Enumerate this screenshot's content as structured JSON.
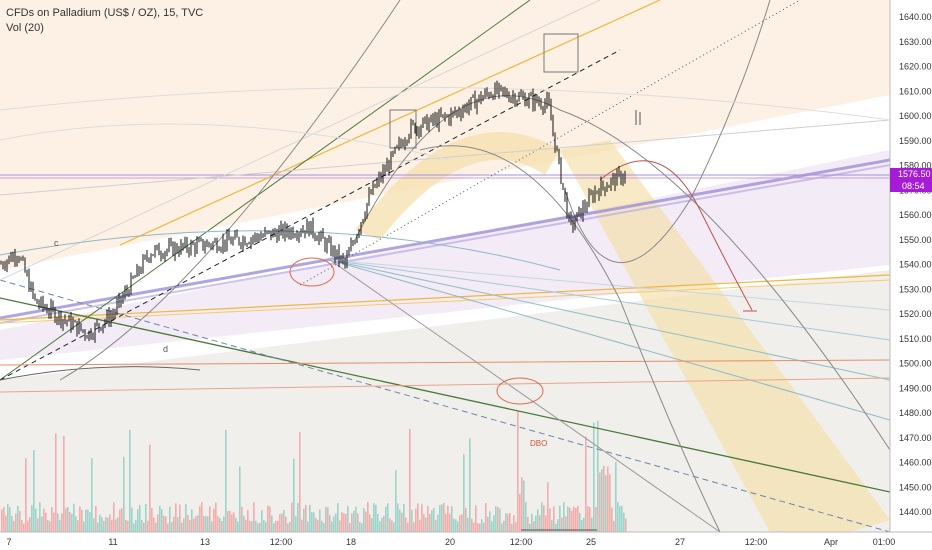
{
  "header": {
    "symbol_line": "CFDs on Palladium (US$ / OZ), 15, TVC",
    "indicator_line": "Vol (20)"
  },
  "price_axis": {
    "tick_labels": [
      "1640.00",
      "1630.00",
      "1620.00",
      "1610.00",
      "1600.00",
      "1590.00",
      "1580.00",
      "1570.00",
      "1560.00",
      "1550.00",
      "1540.00",
      "1530.00",
      "1520.00",
      "1510.00",
      "1500.00",
      "1490.00",
      "1480.00",
      "1470.00",
      "1460.00",
      "1450.00",
      "1440.00"
    ],
    "last_price_label": "1576.50",
    "countdown_label": "08:54",
    "last_price_color": "#a61cd6"
  },
  "time_axis": {
    "tick_labels": [
      "7",
      "11",
      "13",
      "12:00",
      "18",
      "20",
      "12:00",
      "25",
      "27",
      "12:00",
      "Apr",
      "01:00"
    ]
  },
  "annotations": {
    "wave_labels": [
      "c",
      "d"
    ],
    "dbo_label": "DBO"
  },
  "colors": {
    "candle": "#111111",
    "vol_up": "#8ccfc3",
    "vol_down": "#f2a1a1",
    "purple_line": "#9c8fd8",
    "orange_line": "#f3b53a",
    "green_line": "#4a7a3a",
    "red_ellipse": "#e06a4a"
  },
  "chart_data": {
    "type": "candlestick",
    "title": "CFDs on Palladium (US$ / OZ), 15, TVC",
    "interval": "15",
    "ylim": [
      1436,
      1648
    ],
    "yticks": [
      1640,
      1630,
      1620,
      1610,
      1600,
      1590,
      1580,
      1570,
      1560,
      1550,
      1540,
      1530,
      1520,
      1510,
      1500,
      1490,
      1480,
      1470,
      1460,
      1450,
      1440
    ],
    "last_price": 1576.5,
    "x_categories": [
      "7",
      "11",
      "13",
      "12:00",
      "18",
      "20",
      "12:00",
      "25",
      "27",
      "12:00",
      "Apr",
      "01:00"
    ],
    "price_path": [
      {
        "x": "7",
        "y": 1540
      },
      {
        "x": "7",
        "y": 1545
      },
      {
        "x": "7",
        "y": 1525
      },
      {
        "x": "11",
        "y": 1512
      },
      {
        "x": "11",
        "y": 1520
      },
      {
        "x": "13",
        "y": 1545
      },
      {
        "x": "13",
        "y": 1550
      },
      {
        "x": "12:00",
        "y": 1555
      },
      {
        "x": "18",
        "y": 1540
      },
      {
        "x": "18",
        "y": 1568
      },
      {
        "x": "20",
        "y": 1595
      },
      {
        "x": "20",
        "y": 1600
      },
      {
        "x": "12:00",
        "y": 1610
      },
      {
        "x": "12:00",
        "y": 1605
      },
      {
        "x": "25",
        "y": 1555
      },
      {
        "x": "25",
        "y": 1570
      },
      {
        "x": "25",
        "y": 1576.5
      }
    ],
    "volume_series": {
      "name": "Vol (20)"
    }
  }
}
